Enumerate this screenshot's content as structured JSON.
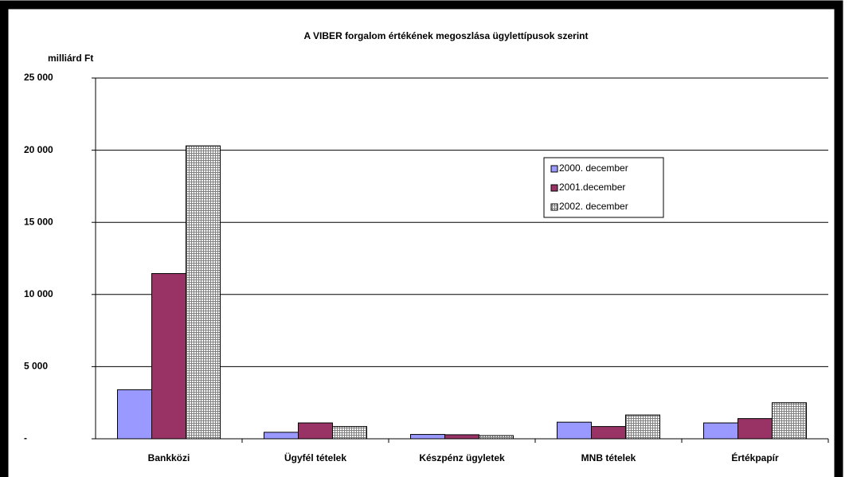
{
  "chart_data": {
    "type": "bar",
    "title": "A VIBER forgalom értékének megoszlása ügylettípusok szerint",
    "y_label": "milliárd Ft",
    "categories": [
      "Bankközi",
      "Ügyfél tételek",
      "Készpénz ügyletek",
      "MNB tételek",
      "Értékpapír"
    ],
    "series": [
      {
        "name": "2000. december",
        "color": "#9999ff",
        "values": [
          3400,
          450,
          300,
          1150,
          1100
        ]
      },
      {
        "name": "2001.december",
        "color": "#993366",
        "values": [
          11450,
          1100,
          280,
          850,
          1400
        ]
      },
      {
        "name": "2002. december",
        "color": "#808080",
        "pattern": "grid",
        "values": [
          20300,
          850,
          220,
          1650,
          2500
        ]
      }
    ],
    "ylim": [
      0,
      25000
    ],
    "yticks": [
      {
        "value": 0,
        "label": "-"
      },
      {
        "value": 5000,
        "label": "5 000"
      },
      {
        "value": 10000,
        "label": "10 000"
      },
      {
        "value": 15000,
        "label": "15 000"
      },
      {
        "value": 20000,
        "label": "20 000"
      },
      {
        "value": 25000,
        "label": "25 000"
      }
    ],
    "grid": true,
    "legend": "center-right"
  }
}
